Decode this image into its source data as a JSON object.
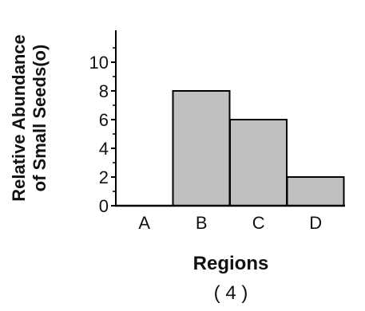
{
  "chart_data": {
    "type": "bar",
    "title": "",
    "categories": [
      "A",
      "B",
      "C",
      "D"
    ],
    "values": [
      0,
      8,
      6,
      2
    ],
    "ylabel_line1": "Relative Abundance",
    "ylabel_line2": "of Small Seeds(",
    "ylabel_symbol": "o",
    "ylabel_end": ")",
    "xlabel": "Regions",
    "figure_number": "( 4 )",
    "yticks": [
      0,
      2,
      4,
      6,
      8,
      10
    ],
    "ylim": [
      0,
      12
    ],
    "grid": false,
    "bar_color": "#c0c0c2",
    "edge_color": "#000000"
  }
}
